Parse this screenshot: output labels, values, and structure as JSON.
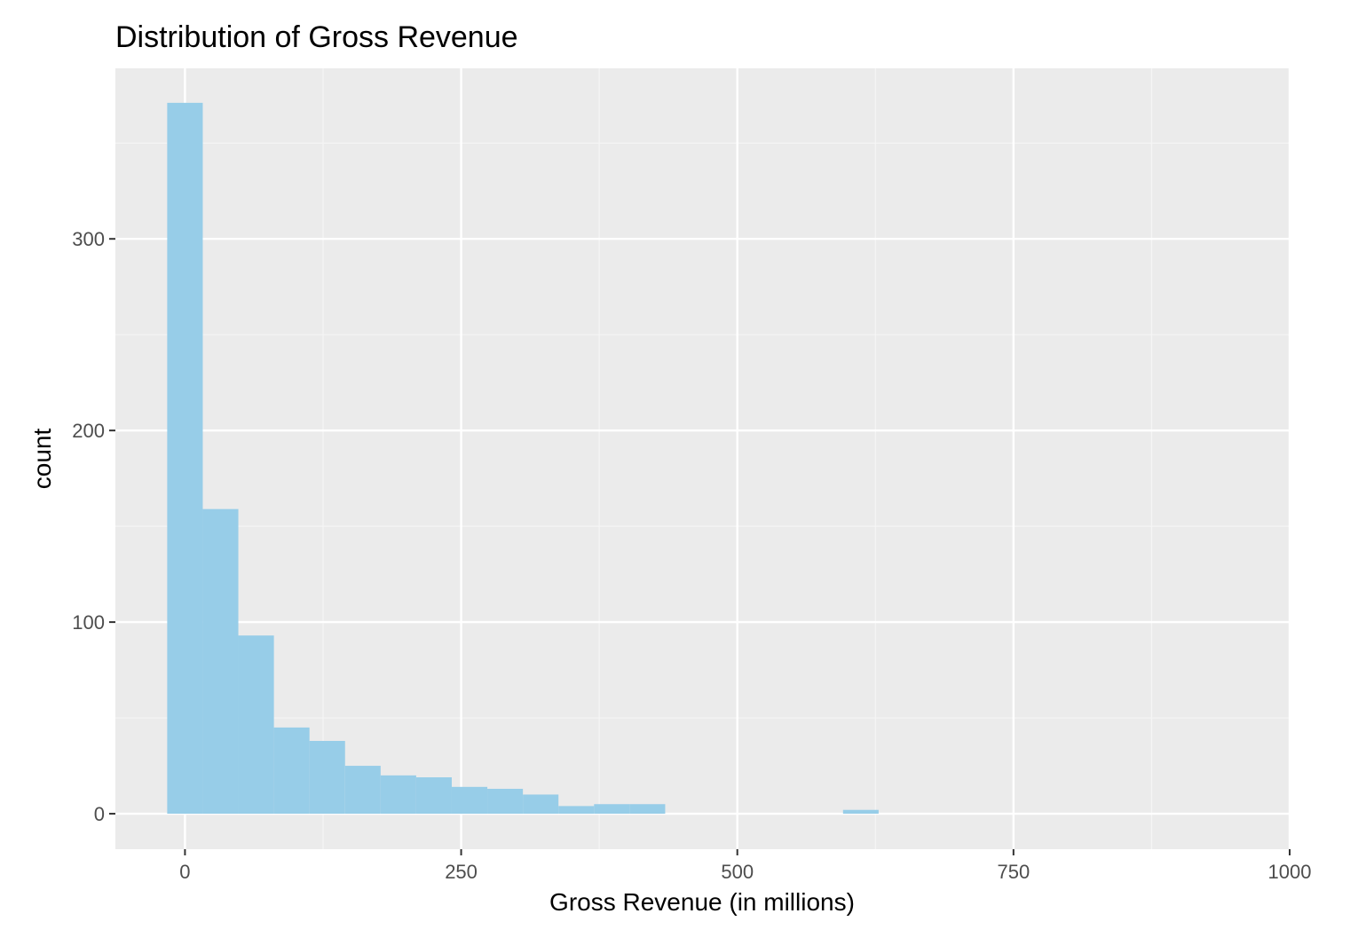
{
  "chart_data": {
    "type": "bar",
    "title": "Distribution of Gross Revenue",
    "xlabel": "Gross Revenue (in millions)",
    "ylabel": "count",
    "x_ticks": [
      {
        "value": 0,
        "label": "0"
      },
      {
        "value": 250,
        "label": "250"
      },
      {
        "value": 500,
        "label": "500"
      },
      {
        "value": 750,
        "label": "750"
      },
      {
        "value": 1000,
        "label": "1000"
      }
    ],
    "y_ticks": [
      {
        "value": 0,
        "label": "0"
      },
      {
        "value": 100,
        "label": "100"
      },
      {
        "value": 200,
        "label": "200"
      },
      {
        "value": 300,
        "label": "300"
      }
    ],
    "xlim": [
      -63,
      1000
    ],
    "ylim": [
      -18.5,
      389
    ],
    "bin_width": 32.2,
    "first_bin_start": -16.1,
    "counts": [
      371,
      159,
      93,
      45,
      38,
      25,
      20,
      19,
      14,
      13,
      10,
      4,
      5,
      5,
      0,
      0,
      0,
      0,
      0,
      2,
      0,
      0,
      0,
      0,
      0,
      0,
      0,
      0,
      0,
      0
    ],
    "grid": true,
    "colors": {
      "bar_fill": "#97CDE8",
      "panel_background": "#EBEBEB",
      "grid_major": "#FFFFFF",
      "grid_minor": "#F5F5F5",
      "tick_text": "#4D4D4D",
      "tick_mark": "#333333"
    }
  }
}
